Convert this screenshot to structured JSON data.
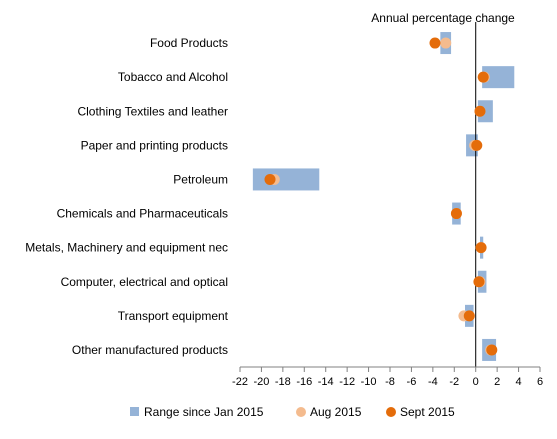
{
  "chart_data": {
    "type": "range-dot",
    "title": "Annual percentage change",
    "xlim": [
      -22,
      6
    ],
    "x_ticks": [
      -22,
      -20,
      -18,
      -16,
      -14,
      -12,
      -10,
      -8,
      -6,
      -4,
      -2,
      0,
      2,
      4,
      6
    ],
    "grid": false,
    "legend_position": "bottom",
    "categories": [
      "Food Products",
      "Tobacco and Alcohol",
      "Clothing Textiles and leather",
      "Paper and printing products",
      "Petroleum",
      "Chemicals and Pharmaceuticals",
      "Metals, Machinery and equipment nec",
      "Computer, electrical and optical",
      "Transport equipment",
      "Other manufactured products"
    ],
    "range": [
      [
        -3.3,
        -2.3
      ],
      [
        0.6,
        3.6
      ],
      [
        0.2,
        1.6
      ],
      [
        -0.9,
        0.2
      ],
      [
        -20.8,
        -14.6
      ],
      [
        -2.2,
        -1.4
      ],
      [
        0.4,
        0.7
      ],
      [
        0.2,
        1.0
      ],
      [
        -1.0,
        -0.2
      ],
      [
        0.6,
        1.9
      ]
    ],
    "series": [
      {
        "name": "Aug 2015",
        "color": "#f4bb8e",
        "values": [
          -2.8,
          0.8,
          0.4,
          -0.1,
          -18.8,
          -1.8,
          0.5,
          0.4,
          -1.1,
          1.4
        ]
      },
      {
        "name": "Sept 2015",
        "color": "#e46c0a",
        "values": [
          -3.8,
          0.7,
          0.4,
          0.1,
          -19.2,
          -1.8,
          0.5,
          0.3,
          -0.6,
          1.5
        ]
      }
    ],
    "legend": [
      {
        "label": "Range since Jan 2015",
        "kind": "bar",
        "color": "#95b3d7"
      },
      {
        "label": "Aug 2015",
        "kind": "dot",
        "color": "#f4bb8e"
      },
      {
        "label": "Sept 2015",
        "kind": "dot",
        "color": "#e46c0a"
      }
    ],
    "colors": {
      "range": "#95b3d7",
      "axis": "#808080"
    }
  }
}
